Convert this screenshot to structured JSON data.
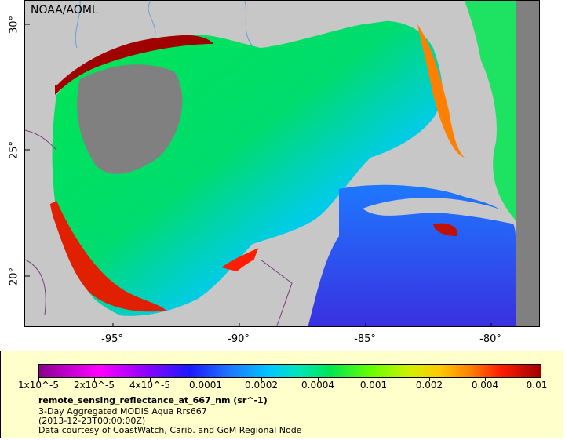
{
  "watermark": "NOAA/AOML",
  "axes": {
    "y_ticks": [
      "30°",
      "25°",
      "20°"
    ],
    "x_ticks": [
      "-95°",
      "-90°",
      "-85°",
      "-80°"
    ]
  },
  "legend": {
    "colorbar_ticks": [
      "1x10^-5",
      "2x10^-5",
      "4x10^-5",
      "0.0001",
      "0.0002",
      "0.0004",
      "0.001",
      "0.002",
      "0.004",
      "0.01"
    ],
    "variable": "remote_sensing_reflectance_at_667_nm (sr^-1)",
    "line1": "3-Day Aggregated MODIS Aqua Rrs667",
    "line2": "(2013-12-23T00:00:00Z)",
    "line3": "Data courtesy of CoastWatch, Carib. and GoM Regional Node"
  },
  "colors": {
    "land": "#c7c7c7",
    "nodata": "#808080",
    "legend_bg": "#ffffcc",
    "coastal_high": "#a00000",
    "midrange": "#00e650"
  }
}
